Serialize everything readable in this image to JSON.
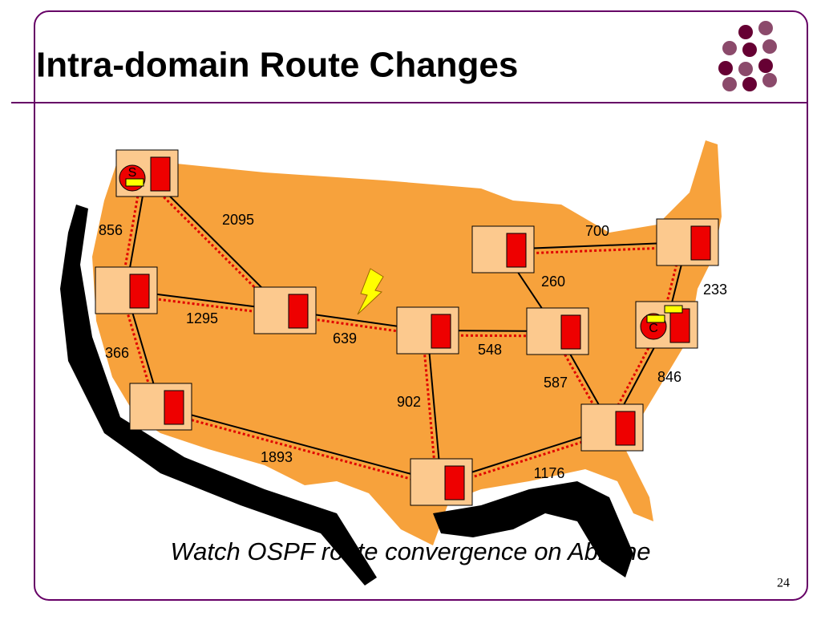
{
  "title": "Intra-domain Route Changes",
  "links": [
    856,
    2095,
    1295,
    366,
    639,
    548,
    700,
    260,
    233,
    846,
    587,
    902,
    1893,
    1176
  ],
  "node_labels": [
    "S",
    "C"
  ],
  "caption": "Watch OSPF route convergence on Abilene",
  "page_number": "24"
}
